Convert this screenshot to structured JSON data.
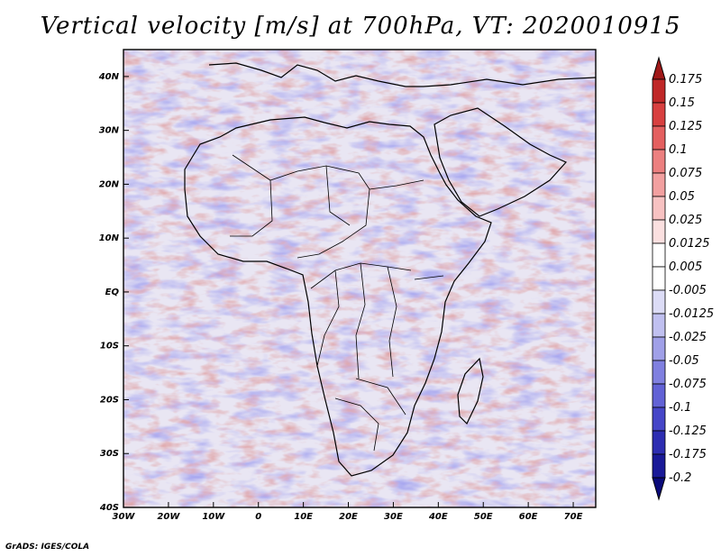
{
  "title": "Vertical velocity [m/s] at 700hPa, VT: 2020010915",
  "footer": "GrADS: IGES/COLA",
  "map": {
    "lon_range": [
      -30,
      75
    ],
    "lat_range": [
      -40,
      45
    ],
    "x_ticks": [
      "30W",
      "20W",
      "10W",
      "0",
      "10E",
      "20E",
      "30E",
      "40E",
      "50E",
      "60E",
      "70E"
    ],
    "y_ticks": [
      "40N",
      "30N",
      "20N",
      "10N",
      "EQ",
      "10S",
      "20S",
      "30S",
      "40S"
    ],
    "colors": {
      "field_background": "#e9e6f3",
      "coastline": "#000000"
    }
  },
  "colorbar": {
    "labels": [
      "0.175",
      "0.15",
      "0.125",
      "0.1",
      "0.075",
      "0.05",
      "0.025",
      "0.0125",
      "0.005",
      "-0.005",
      "-0.0125",
      "-0.025",
      "-0.05",
      "-0.075",
      "-0.1",
      "-0.125",
      "-0.175",
      "-0.2"
    ],
    "colors": [
      "#a01818",
      "#c02828",
      "#d84040",
      "#e46060",
      "#ec8080",
      "#f2a0a0",
      "#f7c2c2",
      "#fbe0e0",
      "#ffffff",
      "#ffffff",
      "#dcdcf6",
      "#c0c0f0",
      "#a0a0e8",
      "#8080e0",
      "#6262d6",
      "#4646c8",
      "#2e2eb2",
      "#1a1a98",
      "#0a0a7a"
    ]
  }
}
